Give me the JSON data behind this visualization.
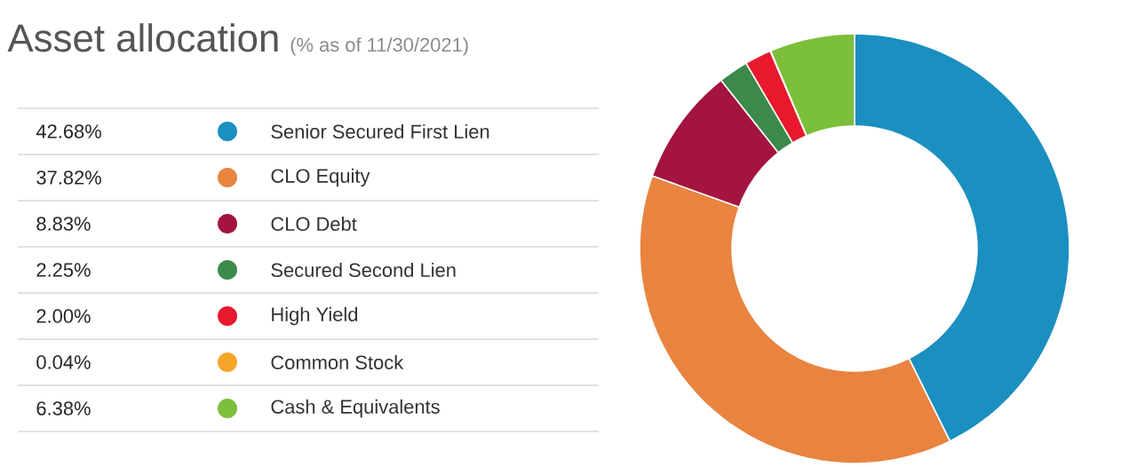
{
  "chart_data": {
    "type": "donut",
    "title": "Asset allocation",
    "subtitle": "(% as of 11/30/2021)",
    "categories": [
      "Senior Secured First Lien",
      "CLO Equity",
      "CLO Debt",
      "Secured Second Lien",
      "High Yield",
      "Common Stock",
      "Cash & Equivalents"
    ],
    "values": [
      42.68,
      37.82,
      8.83,
      2.25,
      2.0,
      0.04,
      6.38
    ],
    "value_labels": [
      "42.68%",
      "37.82%",
      "8.83%",
      "2.25%",
      "2.00%",
      "0.04%",
      "6.38%"
    ],
    "colors": [
      "#1b8fc0",
      "#e8843f",
      "#a3143f",
      "#3b8a4b",
      "#e8192c",
      "#f6a52b",
      "#7cbf3b"
    ],
    "legend": "left"
  }
}
